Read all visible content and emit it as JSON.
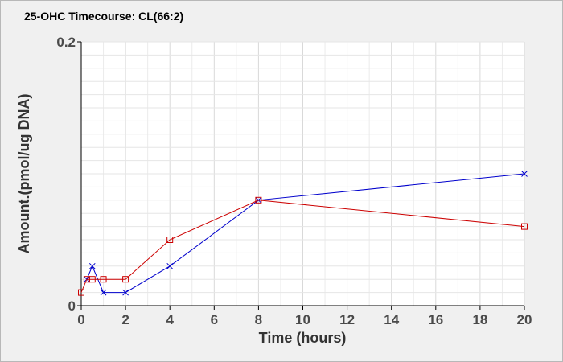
{
  "chart_data": {
    "type": "line",
    "title": "25-OHC Timecourse: CL(66:2)",
    "xlabel": "Time (hours)",
    "ylabel": "Amount.(pmol/ug DNA)",
    "xlim": [
      0,
      20
    ],
    "ylim": [
      0,
      0.2
    ],
    "x_ticks": [
      "0",
      "2",
      "4",
      "6",
      "8",
      "10",
      "12",
      "14",
      "16",
      "18",
      "20"
    ],
    "y_ticks": [
      "0",
      "0.2"
    ],
    "grid": true,
    "series": [
      {
        "color": "#0000cc",
        "marker": "x",
        "x": [
          0.25,
          0.5,
          1,
          2,
          4,
          8,
          20
        ],
        "y": [
          0.02,
          0.03,
          0.01,
          0.01,
          0.03,
          0.08,
          0.1
        ]
      },
      {
        "color": "#cc0000",
        "marker": "square",
        "x": [
          0,
          0.25,
          0.5,
          1,
          2,
          4,
          8,
          20
        ],
        "y": [
          0.01,
          0.02,
          0.02,
          0.02,
          0.02,
          0.05,
          0.08,
          0.06
        ]
      }
    ]
  }
}
